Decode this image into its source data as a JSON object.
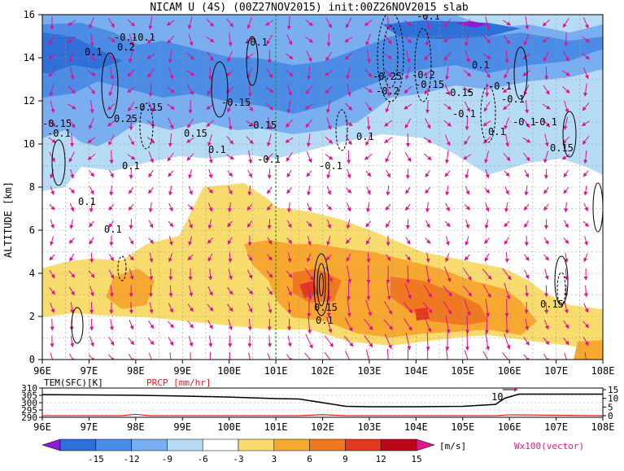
{
  "chart_data": [
    {
      "type": "heatmap",
      "title": "NICAM U (4S) (00Z27NOV2015) init:00Z26NOV2015 slab",
      "xlabel": "",
      "ylabel": "ALTITUDE [km]",
      "x_ticks": [
        "96E",
        "97E",
        "98E",
        "99E",
        "100E",
        "101E",
        "102E",
        "103E",
        "104E",
        "105E",
        "106E",
        "107E",
        "108E"
      ],
      "x_range": [
        96,
        108
      ],
      "y_ticks": [
        "0",
        "2",
        "4",
        "6",
        "8",
        "10",
        "12",
        "14",
        "16"
      ],
      "y_range": [
        0,
        16
      ],
      "grid": true,
      "marker_line_x": 101,
      "colorbar": {
        "labels": [
          "-15",
          "-12",
          "-9",
          "-6",
          "-3",
          "3",
          "6",
          "9",
          "12",
          "15"
        ],
        "unit": "[m/s]",
        "colors": [
          "#8c1ad6",
          "#2f6fd8",
          "#4a8ce6",
          "#79aef0",
          "#b6dcf5",
          "#ffffff",
          "#f8dc6e",
          "#f7a830",
          "#f07820",
          "#e03a20",
          "#b80818",
          "#e01890"
        ]
      },
      "vector_label": "Wx100(vector)",
      "contour_labels": [
        "-0.1",
        "0.1",
        "0.2",
        "-0.15",
        "0.25",
        "0.15",
        "-0.25",
        "-0.2",
        "0.15",
        "0.1"
      ]
    },
    {
      "type": "line",
      "left_label": "TEM(SFC)[K]",
      "right_label": "PRCP [mm/hr]",
      "left_ticks": [
        "310",
        "305",
        "300",
        "295",
        "290"
      ],
      "right_ticks": [
        "15",
        "10",
        "5",
        "0"
      ],
      "x_ticks": [
        "96E",
        "97E",
        "98E",
        "99E",
        "100E",
        "101E",
        "102E",
        "103E",
        "104E",
        "105E",
        "106E",
        "107E",
        "108E"
      ],
      "annotation": "10",
      "series": [
        {
          "color": "#000000",
          "x": [
            96,
            97,
            98,
            99,
            100,
            101,
            101.5,
            102,
            102.5,
            103,
            104,
            105,
            105.7,
            105.9,
            106.2,
            107,
            108
          ],
          "values": [
            305.5,
            305.3,
            305.1,
            304.5,
            303.8,
            302.8,
            302.5,
            300.0,
            297.5,
            297.2,
            297.2,
            297.5,
            298.8,
            303.0,
            305.8,
            305.8,
            305.8
          ]
        },
        {
          "color": "#e02020",
          "x": [
            96,
            97.7,
            98.0,
            98.3,
            101.5,
            102.0,
            102.5,
            105.7,
            106,
            108
          ],
          "values": [
            0,
            0,
            0.8,
            0,
            0,
            0.6,
            0,
            0,
            0.5,
            0
          ]
        }
      ]
    }
  ]
}
